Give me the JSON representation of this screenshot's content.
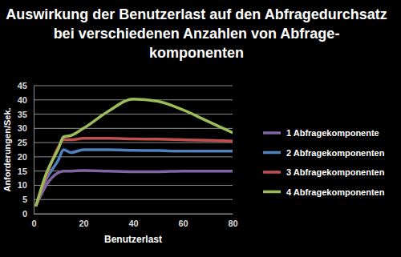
{
  "chart_data": {
    "type": "line",
    "title": [
      "Auswirkung der Benutzerlast auf den Abfragedurchsatz",
      "bei verschiedenen Anzahlen von Abfrage-",
      "komponenten"
    ],
    "x_label": "Benutzerlast",
    "y_label": "Anforderungen/Sek.",
    "x": [
      1,
      5,
      10,
      12,
      15,
      20,
      30,
      40,
      50,
      60,
      70,
      80
    ],
    "series": [
      {
        "name": "1 Abfragekomponente",
        "color": "#8064a2",
        "values": [
          3,
          10,
          14.5,
          15,
          15,
          15.2,
          15,
          14.8,
          14.8,
          15,
          15,
          15
        ]
      },
      {
        "name": "2 Abfragekomponenten",
        "color": "#4f81bd",
        "values": [
          3,
          12,
          19,
          22.5,
          21.5,
          22.5,
          22.5,
          22.3,
          22.2,
          22,
          22,
          22
        ]
      },
      {
        "name": "3 Abfragekomponenten",
        "color": "#c0504d",
        "values": [
          3,
          13,
          23.5,
          26,
          26,
          26.5,
          26.5,
          26.3,
          26.2,
          26,
          25.8,
          25.5
        ]
      },
      {
        "name": "4 Abfragekomponenten",
        "color": "#9bbb59",
        "values": [
          3,
          14,
          23,
          27,
          27.5,
          30,
          36,
          40.3,
          39.5,
          36.5,
          32.5,
          28.5
        ]
      }
    ],
    "xlim": [
      0,
      80
    ],
    "xticks": [
      0,
      20,
      40,
      60,
      80
    ],
    "ylim": [
      0,
      45
    ],
    "yticks": [
      0,
      5,
      10,
      15,
      20,
      25,
      30,
      35,
      40,
      45
    ],
    "grid": true,
    "legend": "right"
  }
}
